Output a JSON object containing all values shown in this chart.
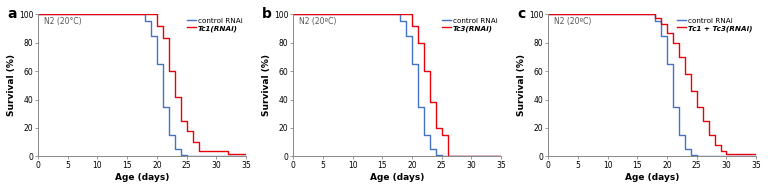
{
  "panels": [
    {
      "label": "a",
      "title": "N2 (20°C)",
      "legend_red": "Tc1(RNAi)",
      "blue": {
        "x": [
          0,
          18,
          18,
          19,
          19,
          20,
          20,
          21,
          21,
          22,
          22,
          23,
          23,
          24,
          24,
          25,
          25,
          35
        ],
        "y": [
          100,
          100,
          95,
          95,
          85,
          85,
          65,
          65,
          35,
          35,
          15,
          15,
          5,
          5,
          1,
          1,
          0,
          0
        ]
      },
      "red": {
        "x": [
          0,
          18,
          18,
          20,
          20,
          21,
          21,
          22,
          22,
          23,
          23,
          24,
          24,
          25,
          25,
          26,
          26,
          27,
          27,
          32,
          32,
          35
        ],
        "y": [
          100,
          100,
          100,
          100,
          92,
          92,
          83,
          83,
          60,
          60,
          42,
          42,
          25,
          25,
          18,
          18,
          10,
          10,
          4,
          4,
          2,
          2
        ]
      }
    },
    {
      "label": "b",
      "title": "N2 (20ºC)",
      "legend_red": "Tc3(RNAi)",
      "blue": {
        "x": [
          0,
          18,
          18,
          19,
          19,
          20,
          20,
          21,
          21,
          22,
          22,
          23,
          23,
          24,
          24,
          25,
          25,
          35
        ],
        "y": [
          100,
          100,
          95,
          95,
          85,
          85,
          65,
          65,
          35,
          35,
          15,
          15,
          5,
          5,
          1,
          1,
          0,
          0
        ]
      },
      "red": {
        "x": [
          0,
          18,
          18,
          20,
          20,
          21,
          21,
          22,
          22,
          23,
          23,
          24,
          24,
          25,
          25,
          26,
          26,
          35
        ],
        "y": [
          100,
          100,
          100,
          100,
          92,
          92,
          80,
          80,
          60,
          60,
          38,
          38,
          20,
          20,
          15,
          15,
          0,
          0
        ]
      }
    },
    {
      "label": "c",
      "title": "N2 (20ºC)",
      "legend_red": "Tc1 + Tc3(RNAi)",
      "blue": {
        "x": [
          0,
          18,
          18,
          19,
          19,
          20,
          20,
          21,
          21,
          22,
          22,
          23,
          23,
          24,
          24,
          25,
          25,
          35
        ],
        "y": [
          100,
          100,
          95,
          95,
          85,
          85,
          65,
          65,
          35,
          35,
          15,
          15,
          5,
          5,
          1,
          1,
          0,
          0
        ]
      },
      "red": {
        "x": [
          0,
          16,
          16,
          18,
          18,
          19,
          19,
          20,
          20,
          21,
          21,
          22,
          22,
          23,
          23,
          24,
          24,
          25,
          25,
          26,
          26,
          27,
          27,
          28,
          28,
          29,
          29,
          30,
          30,
          35
        ],
        "y": [
          100,
          100,
          100,
          100,
          97,
          97,
          93,
          93,
          87,
          87,
          80,
          80,
          70,
          70,
          58,
          58,
          46,
          46,
          35,
          35,
          25,
          25,
          15,
          15,
          8,
          8,
          4,
          4,
          2,
          2
        ]
      }
    }
  ],
  "blue_color": "#4472C4",
  "red_color": "#E8000A",
  "background_color": "#ffffff",
  "xlim": [
    0,
    35
  ],
  "ylim": [
    0,
    100
  ],
  "xticks": [
    0,
    5,
    10,
    15,
    20,
    25,
    30,
    35
  ],
  "yticks": [
    0,
    20,
    40,
    60,
    80,
    100
  ],
  "xlabel": "Age (days)",
  "ylabel": "Survival (%)",
  "legend_blue": "control RNAi"
}
